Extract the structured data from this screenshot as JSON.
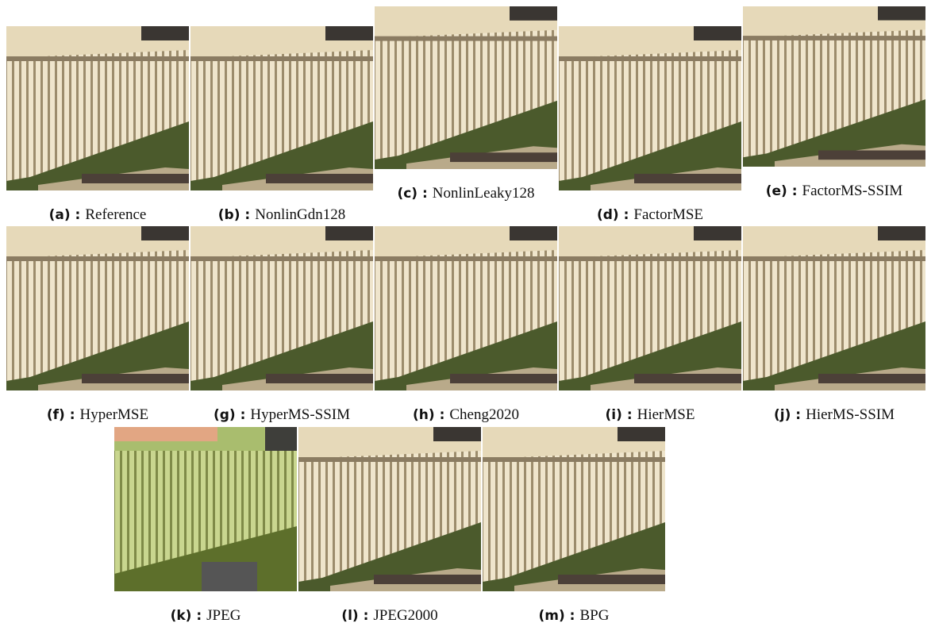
{
  "panels": [
    {
      "label": "(a) :",
      "caption": "Reference"
    },
    {
      "label": "(b) :",
      "caption": "NonlinGdn128"
    },
    {
      "label": "(c) :",
      "caption": "NonlinLeaky128"
    },
    {
      "label": "(d) :",
      "caption": "FactorMSE"
    },
    {
      "label": "(e) :",
      "caption": "FactorMS-SSIM"
    },
    {
      "label": "(f) :",
      "caption": "HyperMSE"
    },
    {
      "label": "(g) :",
      "caption": "HyperMS-SSIM"
    },
    {
      "label": "(h) :",
      "caption": "Cheng2020"
    },
    {
      "label": "(i) :",
      "caption": "HierMSE"
    },
    {
      "label": "(j) :",
      "caption": "HierMS-SSIM"
    },
    {
      "label": "(k) :",
      "caption": "JPEG"
    },
    {
      "label": "(l) :",
      "caption": "JPEG2000"
    },
    {
      "label": "(m) :",
      "caption": "BPG"
    }
  ]
}
